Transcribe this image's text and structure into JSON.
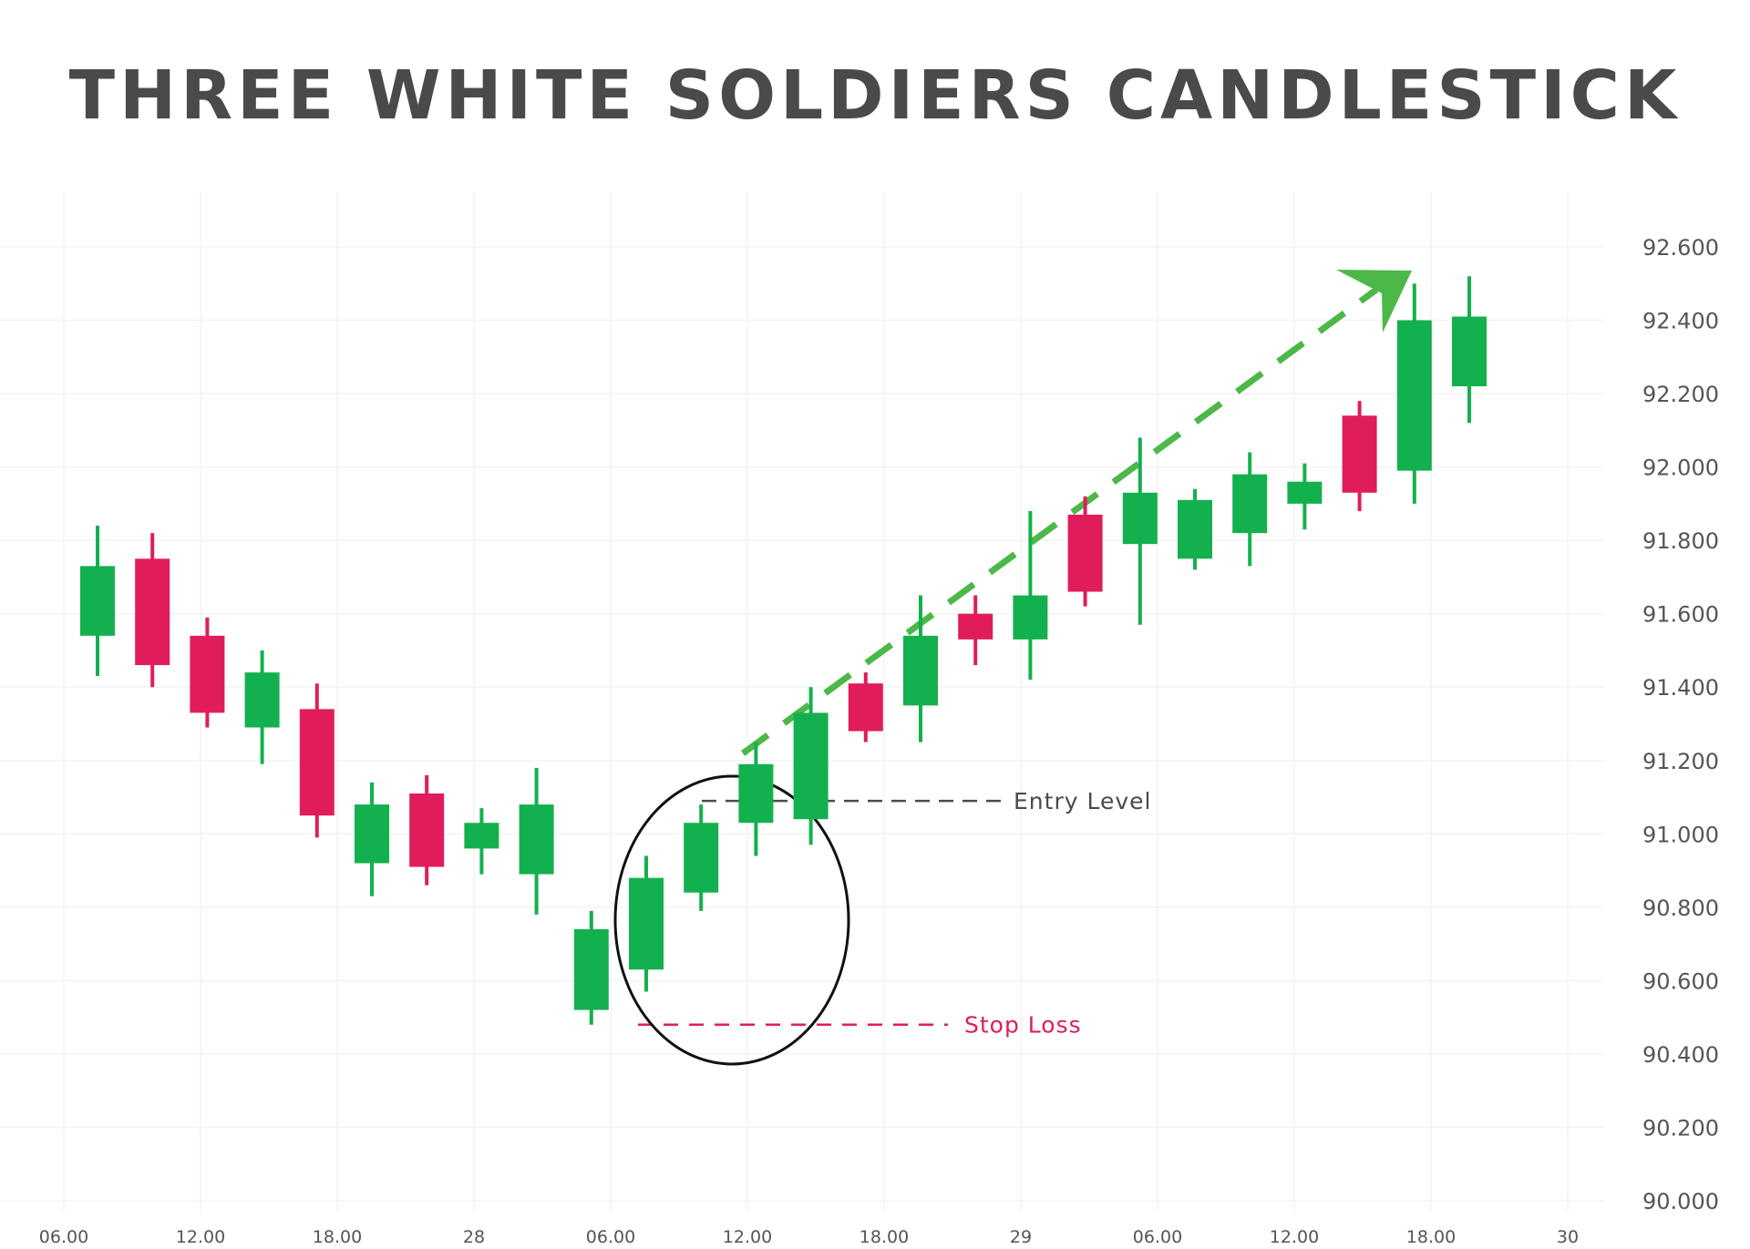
{
  "title": "THREE WHITE SOLDIERS CANDLESTICK",
  "chart_data": {
    "type": "candlestick",
    "title": "THREE WHITE SOLDIERS CANDLESTICK",
    "ylim": [
      90.0,
      92.6
    ],
    "y_ticks": [
      "92.600",
      "92.400",
      "92.200",
      "92.000",
      "91.800",
      "91.600",
      "91.400",
      "91.200",
      "91.000",
      "90.800",
      "90.600",
      "90.400",
      "90.200",
      "90.000"
    ],
    "x_ticks": [
      "06.00",
      "12.00",
      "18.00",
      "28",
      "06.00",
      "12.00",
      "18.00",
      "29",
      "06.00",
      "12.00",
      "18.00",
      "30"
    ],
    "grid": true,
    "colors": {
      "up": "#13b14d",
      "down": "#e01d5a",
      "arrow": "#4cb848",
      "entry": "#4a4a4a",
      "stop": "#e01d5a",
      "text": "#555555"
    },
    "candles": [
      {
        "open": 91.54,
        "close": 91.73,
        "high": 91.84,
        "low": 91.43
      },
      {
        "open": 91.75,
        "close": 91.46,
        "high": 91.82,
        "low": 91.4
      },
      {
        "open": 91.54,
        "close": 91.33,
        "high": 91.59,
        "low": 91.29
      },
      {
        "open": 91.29,
        "close": 91.44,
        "high": 91.5,
        "low": 91.19
      },
      {
        "open": 91.34,
        "close": 91.05,
        "high": 91.41,
        "low": 90.99
      },
      {
        "open": 90.92,
        "close": 91.08,
        "high": 91.14,
        "low": 90.83
      },
      {
        "open": 91.11,
        "close": 90.91,
        "high": 91.16,
        "low": 90.86
      },
      {
        "open": 90.96,
        "close": 91.03,
        "high": 91.07,
        "low": 90.89
      },
      {
        "open": 90.89,
        "close": 91.08,
        "high": 91.18,
        "low": 90.78
      },
      {
        "open": 90.52,
        "close": 90.74,
        "high": 90.79,
        "low": 90.48
      },
      {
        "open": 90.63,
        "close": 90.88,
        "high": 90.94,
        "low": 90.57
      },
      {
        "open": 90.84,
        "close": 91.03,
        "high": 91.08,
        "low": 90.79
      },
      {
        "open": 91.03,
        "close": 91.19,
        "high": 91.25,
        "low": 90.94
      },
      {
        "open": 91.04,
        "close": 91.33,
        "high": 91.4,
        "low": 90.97
      },
      {
        "open": 91.41,
        "close": 91.28,
        "high": 91.44,
        "low": 91.25
      },
      {
        "open": 91.35,
        "close": 91.54,
        "high": 91.65,
        "low": 91.25
      },
      {
        "open": 91.6,
        "close": 91.53,
        "high": 91.65,
        "low": 91.46
      },
      {
        "open": 91.53,
        "close": 91.65,
        "high": 91.88,
        "low": 91.42
      },
      {
        "open": 91.87,
        "close": 91.66,
        "high": 91.92,
        "low": 91.62
      },
      {
        "open": 91.79,
        "close": 91.93,
        "high": 92.08,
        "low": 91.57
      },
      {
        "open": 91.75,
        "close": 91.91,
        "high": 91.94,
        "low": 91.72
      },
      {
        "open": 91.82,
        "close": 91.98,
        "high": 92.04,
        "low": 91.73
      },
      {
        "open": 91.9,
        "close": 91.96,
        "high": 92.01,
        "low": 91.83
      },
      {
        "open": 92.14,
        "close": 91.93,
        "high": 92.18,
        "low": 91.88
      },
      {
        "open": 91.99,
        "close": 92.4,
        "high": 92.5,
        "low": 91.9
      },
      {
        "open": 92.22,
        "close": 92.41,
        "high": 92.52,
        "low": 92.12
      }
    ],
    "annotations": {
      "entry_label": "Entry Level",
      "entry_value": 91.09,
      "stop_label": "Stop Loss",
      "stop_value": 90.48
    }
  }
}
